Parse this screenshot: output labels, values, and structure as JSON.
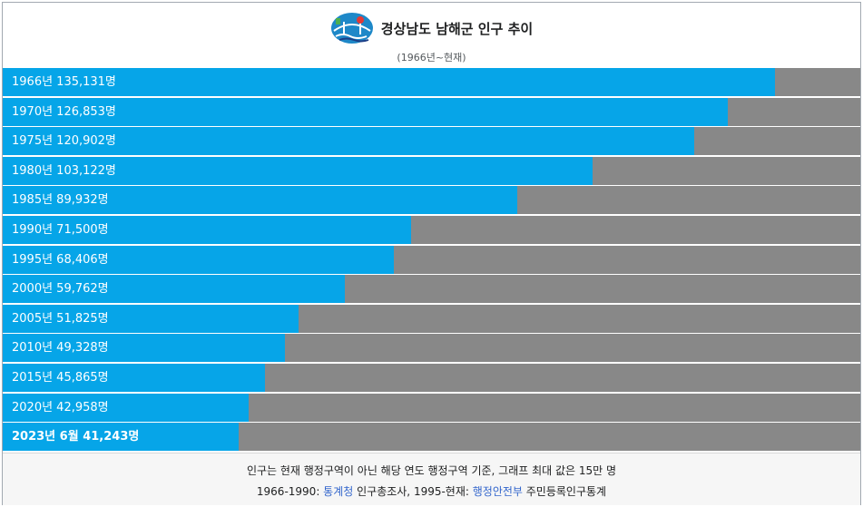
{
  "header": {
    "title": "경상남도 남해군 인구 추이",
    "subtitle": "(1966년~현재)",
    "emblem_icon": "namhae-county-emblem-icon"
  },
  "chart_data": {
    "type": "bar",
    "orientation": "horizontal",
    "max_value": 150000,
    "unit": "명",
    "bar_color": "#06a5e8",
    "track_color": "#888888",
    "rows": [
      {
        "year": "1966년",
        "value": 135131,
        "label": "1966년 135,131명",
        "bold": false
      },
      {
        "year": "1970년",
        "value": 126853,
        "label": "1970년 126,853명",
        "bold": false
      },
      {
        "year": "1975년",
        "value": 120902,
        "label": "1975년 120,902명",
        "bold": false
      },
      {
        "year": "1980년",
        "value": 103122,
        "label": "1980년 103,122명",
        "bold": false
      },
      {
        "year": "1985년",
        "value": 89932,
        "label": "1985년 89,932명",
        "bold": false
      },
      {
        "year": "1990년",
        "value": 71500,
        "label": "1990년 71,500명",
        "bold": false
      },
      {
        "year": "1995년",
        "value": 68406,
        "label": "1995년 68,406명",
        "bold": false
      },
      {
        "year": "2000년",
        "value": 59762,
        "label": "2000년 59,762명",
        "bold": false
      },
      {
        "year": "2005년",
        "value": 51825,
        "label": "2005년 51,825명",
        "bold": false
      },
      {
        "year": "2010년",
        "value": 49328,
        "label": "2010년 49,328명",
        "bold": false
      },
      {
        "year": "2015년",
        "value": 45865,
        "label": "2015년 45,865명",
        "bold": false
      },
      {
        "year": "2020년",
        "value": 42958,
        "label": "2020년 42,958명",
        "bold": false
      },
      {
        "year": "2023년 6월",
        "value": 41243,
        "label": "2023년 6월 41,243명",
        "bold": true
      }
    ]
  },
  "footer": {
    "note": "인구는 현재 행정구역이 아닌 해당 연도 행정구역 기준, 그래프 최대 값은 15만 명",
    "source_prefix": "1966-1990: ",
    "source_link1": "통계청",
    "source_mid": " 인구총조사, 1995-현재: ",
    "source_link2": "행정안전부",
    "source_suffix": " 주민등록인구통계"
  }
}
